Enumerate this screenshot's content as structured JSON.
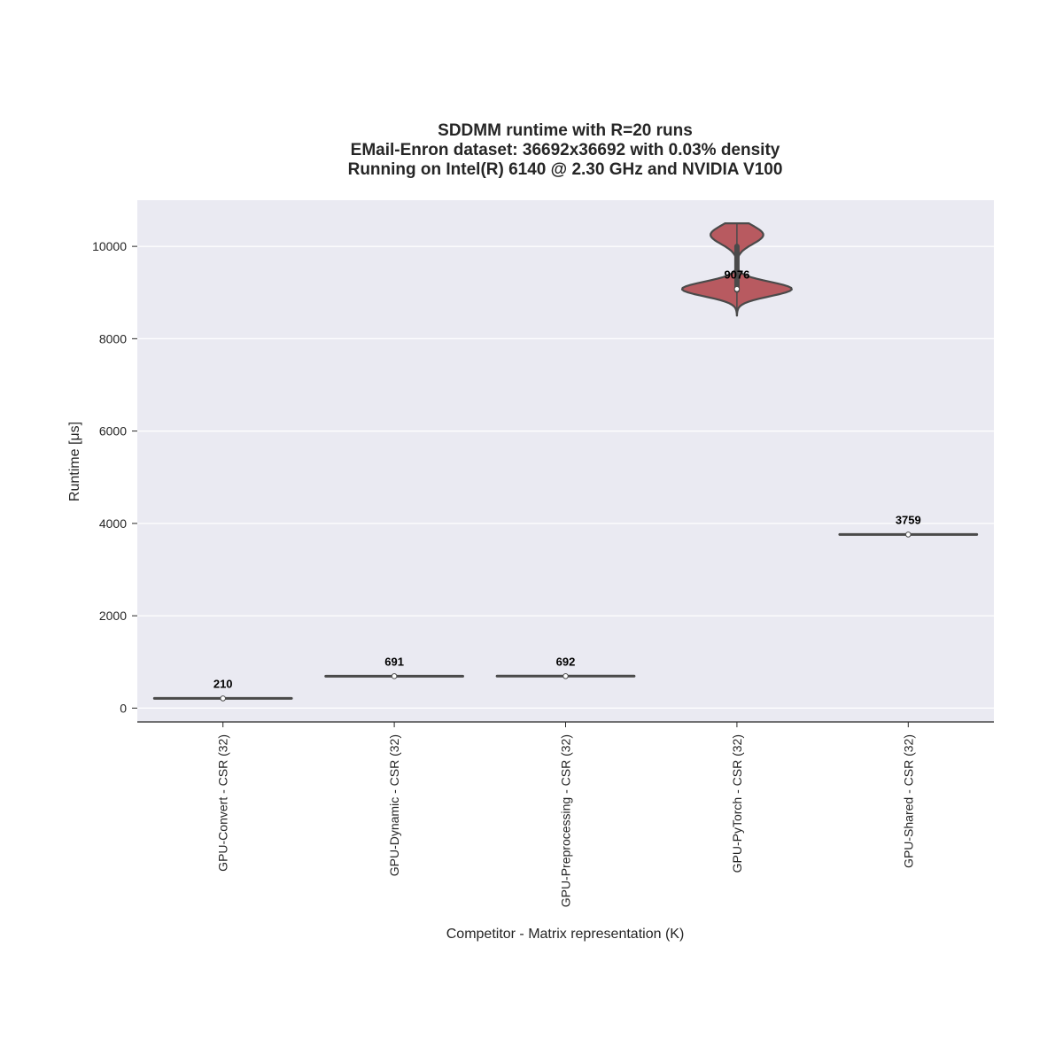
{
  "chart_data": {
    "type": "violin",
    "title": [
      "SDDMM runtime with R=20 runs",
      "EMail-Enron dataset: 36692x36692 with 0.03% density",
      "Running on Intel(R) 6140 @ 2.30 GHz and NVIDIA V100"
    ],
    "xlabel": "Competitor - Matrix representation (K)",
    "ylabel": "Runtime [μs]",
    "ylim": [
      -300,
      11000
    ],
    "yticks": [
      "0",
      "2000",
      "4000",
      "6000",
      "8000",
      "10000"
    ],
    "grid": true,
    "categories": [
      "GPU-Convert - CSR (32)",
      "GPU-Dynamic - CSR (32)",
      "GPU-Preprocessing - CSR (32)",
      "GPU-PyTorch - CSR (32)",
      "GPU-Shared - CSR (32)"
    ],
    "medians": [
      210,
      691,
      692,
      9076,
      3759
    ],
    "median_labels": [
      "210",
      "691",
      "692",
      "9076",
      "3759"
    ],
    "distributions": [
      {
        "min": 205,
        "q1": 208,
        "q3": 212,
        "max": 215
      },
      {
        "min": 686,
        "q1": 689,
        "q3": 694,
        "max": 697
      },
      {
        "min": 687,
        "q1": 690,
        "q3": 695,
        "max": 698
      },
      {
        "min": 8500,
        "q1": 9050,
        "q3": 10000,
        "max": 10500
      },
      {
        "min": 3740,
        "q1": 3752,
        "q3": 3766,
        "max": 3775
      }
    ],
    "colors": {
      "background": "#eaeaf2",
      "grid": "#ffffff",
      "violin_fill": "#b85a60",
      "violin_edge": "#4a4a4a",
      "text": "#262626"
    }
  }
}
